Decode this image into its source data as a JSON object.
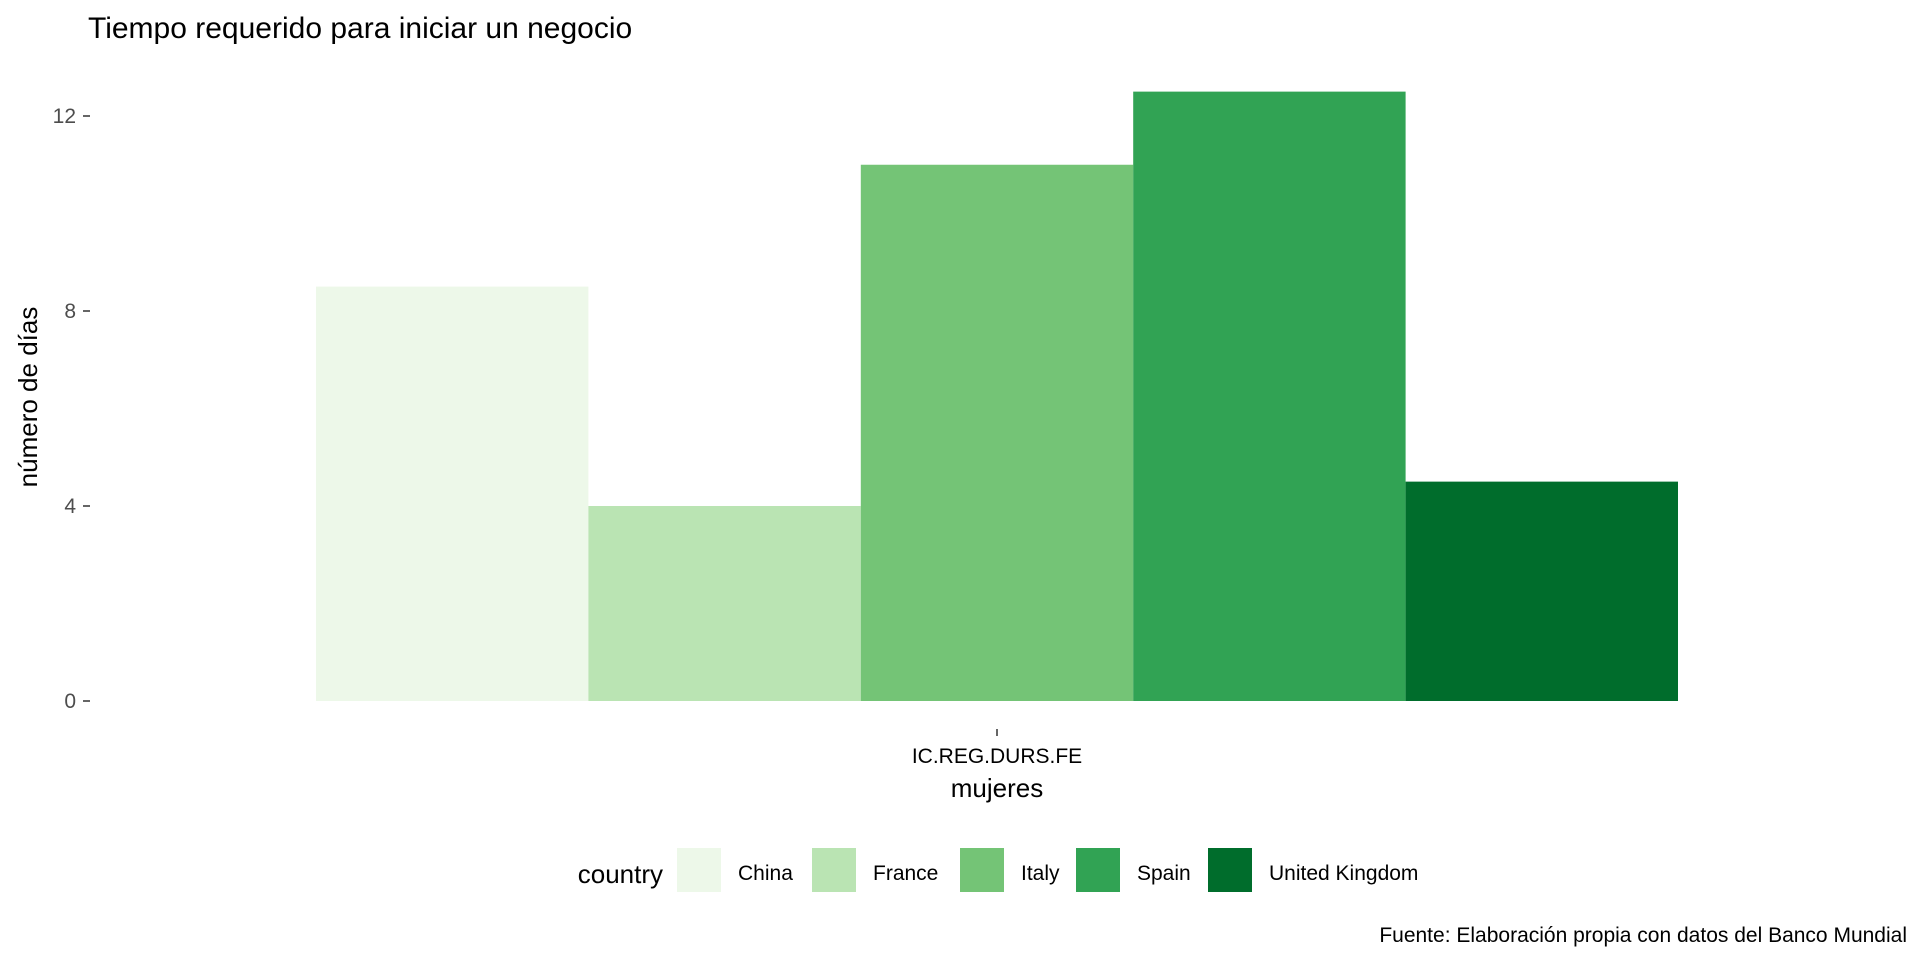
{
  "chart_data": {
    "type": "bar",
    "title": "Tiempo requerido para iniciar un negocio",
    "xlabel": "mujeres",
    "ylabel": "número de días",
    "caption": "Fuente: Elaboración propia con datos del Banco Mundial",
    "categories": [
      "IC.REG.DURS.FE"
    ],
    "series": [
      {
        "name": "China",
        "values": [
          8.5
        ],
        "color": "#edf8e9"
      },
      {
        "name": "France",
        "values": [
          4
        ],
        "color": "#bae4b3"
      },
      {
        "name": "Italy",
        "values": [
          11
        ],
        "color": "#74c476"
      },
      {
        "name": "Spain",
        "values": [
          12.5
        ],
        "color": "#31a354"
      },
      {
        "name": "United Kingdom",
        "values": [
          4.5
        ],
        "color": "#006d2c"
      }
    ],
    "yticks": [
      0,
      4,
      8,
      12
    ],
    "ylim": [
      0,
      12.5
    ],
    "legend_title": "country",
    "legend_position": "bottom",
    "grid": false
  }
}
